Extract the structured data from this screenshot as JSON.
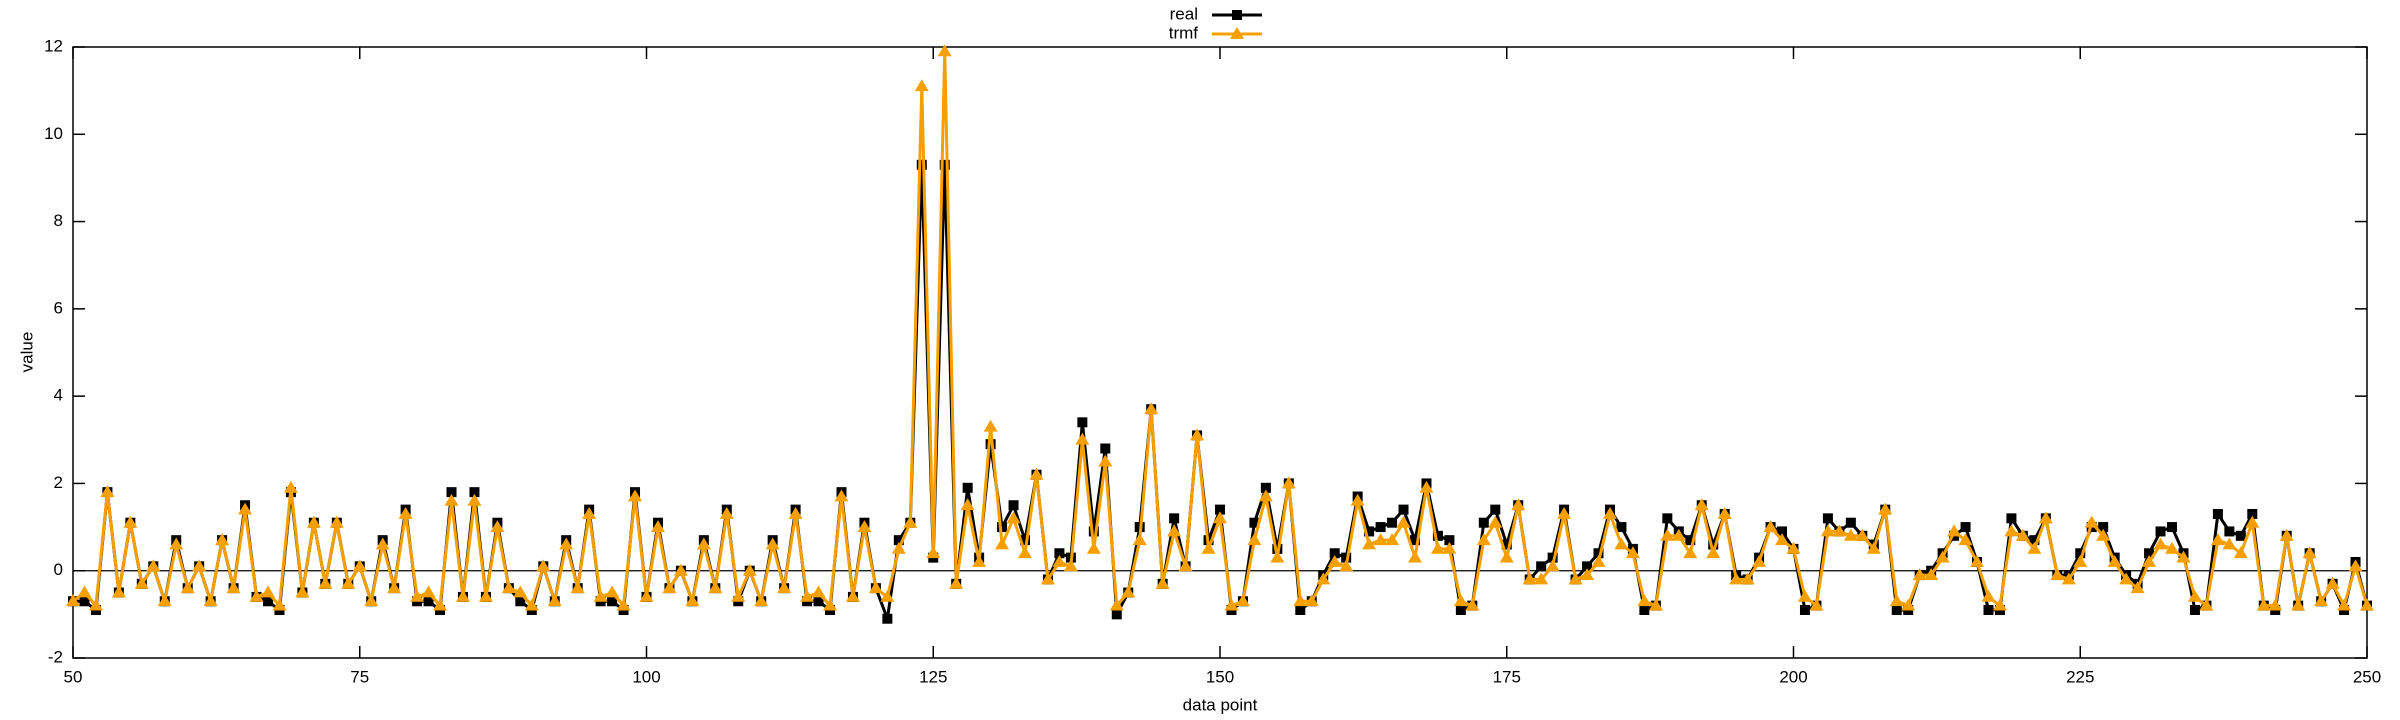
{
  "chart_data": {
    "type": "line",
    "xlabel": "data point",
    "ylabel": "value",
    "x": [
      50,
      51,
      52,
      53,
      54,
      55,
      56,
      57,
      58,
      59,
      60,
      61,
      62,
      63,
      64,
      65,
      66,
      67,
      68,
      69,
      70,
      71,
      72,
      73,
      74,
      75,
      76,
      77,
      78,
      79,
      80,
      81,
      82,
      83,
      84,
      85,
      86,
      87,
      88,
      89,
      90,
      91,
      92,
      93,
      94,
      95,
      96,
      97,
      98,
      99,
      100,
      101,
      102,
      103,
      104,
      105,
      106,
      107,
      108,
      109,
      110,
      111,
      112,
      113,
      114,
      115,
      116,
      117,
      118,
      119,
      120,
      121,
      122,
      123,
      124,
      125,
      126,
      127,
      128,
      129,
      130,
      131,
      132,
      133,
      134,
      135,
      136,
      137,
      138,
      139,
      140,
      141,
      142,
      143,
      144,
      145,
      146,
      147,
      148,
      149,
      150,
      151,
      152,
      153,
      154,
      155,
      156,
      157,
      158,
      159,
      160,
      161,
      162,
      163,
      164,
      165,
      166,
      167,
      168,
      169,
      170,
      171,
      172,
      173,
      174,
      175,
      176,
      177,
      178,
      179,
      180,
      181,
      182,
      183,
      184,
      185,
      186,
      187,
      188,
      189,
      190,
      191,
      192,
      193,
      194,
      195,
      196,
      197,
      198,
      199,
      200,
      201,
      202,
      203,
      204,
      205,
      206,
      207,
      208,
      209,
      210,
      211,
      212,
      213,
      214,
      215,
      216,
      217,
      218,
      219,
      220,
      221,
      222,
      223,
      224,
      225,
      226,
      227,
      228,
      229,
      230,
      231,
      232,
      233,
      234,
      235,
      236,
      237,
      238,
      239,
      240,
      241,
      242,
      243,
      244,
      245,
      246,
      247,
      248,
      249,
      250
    ],
    "series": [
      {
        "name": "real",
        "color": "#000000",
        "marker": "square",
        "values": [
          -0.7,
          -0.7,
          -0.9,
          1.8,
          -0.5,
          1.1,
          -0.3,
          0.1,
          -0.7,
          0.7,
          -0.4,
          0.1,
          -0.7,
          0.7,
          -0.4,
          1.5,
          -0.6,
          -0.7,
          -0.9,
          1.8,
          -0.5,
          1.1,
          -0.3,
          1.1,
          -0.3,
          0.1,
          -0.7,
          0.7,
          -0.4,
          1.4,
          -0.7,
          -0.7,
          -0.9,
          1.8,
          -0.6,
          1.8,
          -0.6,
          1.1,
          -0.4,
          -0.7,
          -0.9,
          0.1,
          -0.7,
          0.7,
          -0.4,
          1.4,
          -0.7,
          -0.7,
          -0.9,
          1.8,
          -0.6,
          1.1,
          -0.4,
          0.0,
          -0.7,
          0.7,
          -0.4,
          1.4,
          -0.7,
          0.0,
          -0.7,
          0.7,
          -0.4,
          1.4,
          -0.7,
          -0.7,
          -0.9,
          1.8,
          -0.6,
          1.1,
          -0.4,
          -1.1,
          0.7,
          1.1,
          9.3,
          0.3,
          9.3,
          -0.3,
          1.9,
          0.3,
          2.9,
          1.0,
          1.5,
          0.7,
          2.2,
          -0.2,
          0.4,
          0.3,
          3.4,
          0.9,
          2.8,
          -1.0,
          -0.5,
          1.0,
          3.7,
          -0.3,
          1.2,
          0.1,
          3.1,
          0.7,
          1.4,
          -0.9,
          -0.7,
          1.1,
          1.9,
          0.5,
          2.0,
          -0.9,
          -0.7,
          -0.1,
          0.4,
          0.3,
          1.7,
          0.9,
          1.0,
          1.1,
          1.4,
          0.7,
          2.0,
          0.8,
          0.7,
          -0.9,
          -0.8,
          1.1,
          1.4,
          0.6,
          1.5,
          -0.2,
          0.1,
          0.3,
          1.4,
          -0.2,
          0.1,
          0.4,
          1.4,
          1.0,
          0.5,
          -0.9,
          -0.8,
          1.2,
          0.9,
          0.7,
          1.5,
          0.6,
          1.3,
          -0.1,
          -0.2,
          0.3,
          1.0,
          0.9,
          0.5,
          -0.9,
          -0.8,
          1.2,
          0.9,
          1.1,
          0.8,
          0.6,
          1.4,
          -0.9,
          -0.9,
          -0.1,
          0.0,
          0.4,
          0.8,
          1.0,
          0.2,
          -0.9,
          -0.9,
          1.2,
          0.8,
          0.7,
          1.2,
          -0.1,
          -0.1,
          0.4,
          1.0,
          1.0,
          0.3,
          -0.1,
          -0.3,
          0.4,
          0.9,
          1.0,
          0.4,
          -0.9,
          -0.8,
          1.3,
          0.9,
          0.8,
          1.3,
          -0.8,
          -0.9,
          0.8,
          -0.8,
          0.4,
          -0.7,
          -0.3,
          -0.9,
          0.2,
          -0.8
        ]
      },
      {
        "name": "trmf",
        "color": "#f5a000",
        "marker": "triangle",
        "values": [
          -0.7,
          -0.5,
          -0.8,
          1.8,
          -0.5,
          1.1,
          -0.3,
          0.1,
          -0.7,
          0.6,
          -0.4,
          0.1,
          -0.7,
          0.7,
          -0.4,
          1.4,
          -0.6,
          -0.5,
          -0.8,
          1.9,
          -0.5,
          1.1,
          -0.3,
          1.1,
          -0.3,
          0.1,
          -0.7,
          0.6,
          -0.4,
          1.3,
          -0.6,
          -0.5,
          -0.8,
          1.6,
          -0.6,
          1.6,
          -0.6,
          1.0,
          -0.4,
          -0.5,
          -0.8,
          0.1,
          -0.7,
          0.6,
          -0.4,
          1.3,
          -0.6,
          -0.5,
          -0.8,
          1.7,
          -0.6,
          1.0,
          -0.4,
          0.0,
          -0.7,
          0.6,
          -0.4,
          1.3,
          -0.6,
          0.0,
          -0.7,
          0.6,
          -0.4,
          1.3,
          -0.6,
          -0.5,
          -0.8,
          1.7,
          -0.6,
          1.0,
          -0.4,
          -0.6,
          0.5,
          1.1,
          11.1,
          0.4,
          11.9,
          -0.3,
          1.5,
          0.2,
          3.3,
          0.6,
          1.2,
          0.4,
          2.2,
          -0.2,
          0.2,
          0.1,
          3.0,
          0.5,
          2.5,
          -0.8,
          -0.5,
          0.7,
          3.7,
          -0.3,
          0.9,
          0.1,
          3.1,
          0.5,
          1.2,
          -0.8,
          -0.7,
          0.7,
          1.7,
          0.3,
          2.0,
          -0.7,
          -0.7,
          -0.2,
          0.2,
          0.1,
          1.6,
          0.6,
          0.7,
          0.7,
          1.1,
          0.3,
          1.9,
          0.5,
          0.5,
          -0.7,
          -0.8,
          0.7,
          1.1,
          0.3,
          1.5,
          -0.2,
          -0.2,
          0.1,
          1.3,
          -0.2,
          -0.1,
          0.2,
          1.3,
          0.6,
          0.4,
          -0.7,
          -0.8,
          0.8,
          0.8,
          0.4,
          1.5,
          0.4,
          1.3,
          -0.2,
          -0.2,
          0.2,
          1.0,
          0.7,
          0.5,
          -0.6,
          -0.8,
          0.9,
          0.9,
          0.8,
          0.8,
          0.5,
          1.4,
          -0.7,
          -0.8,
          -0.1,
          -0.1,
          0.3,
          0.9,
          0.7,
          0.2,
          -0.6,
          -0.8,
          0.9,
          0.8,
          0.5,
          1.2,
          -0.1,
          -0.2,
          0.2,
          1.1,
          0.8,
          0.2,
          -0.2,
          -0.4,
          0.2,
          0.6,
          0.5,
          0.3,
          -0.6,
          -0.8,
          0.7,
          0.6,
          0.4,
          1.1,
          -0.8,
          -0.8,
          0.8,
          -0.8,
          0.4,
          -0.7,
          -0.3,
          -0.8,
          0.1,
          -0.8
        ]
      }
    ],
    "xlim": [
      50,
      250
    ],
    "ylim": [
      -2,
      12
    ],
    "xticks": [
      50,
      75,
      100,
      125,
      150,
      175,
      200,
      225,
      250
    ],
    "yticks": [
      -2,
      0,
      2,
      4,
      6,
      8,
      10,
      12
    ],
    "grid": false,
    "zero_line": true,
    "legend": "top-center"
  }
}
